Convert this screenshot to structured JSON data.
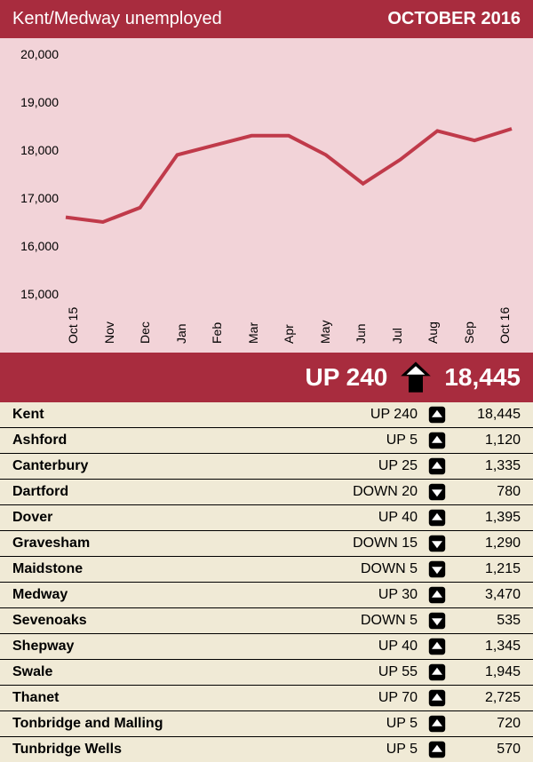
{
  "header": {
    "title": "Kent/Medway unemployed",
    "date": "OCTOBER 2016"
  },
  "chart": {
    "type": "line",
    "background_color": "#f2d3d8",
    "line_color": "#c03a4a",
    "line_width": 4,
    "ylim": [
      15000,
      20000
    ],
    "ytick_step": 1000,
    "ylabels": [
      "15,000",
      "16,000",
      "17,000",
      "18,000",
      "19,000",
      "20,000"
    ],
    "xlabels": [
      "Oct 15",
      "Nov",
      "Dec",
      "Jan",
      "Feb",
      "Mar",
      "Apr",
      "May",
      "Jun",
      "Jul",
      "Aug",
      "Sep",
      "Oct 16"
    ],
    "values": [
      16600,
      16500,
      16800,
      17900,
      18100,
      18300,
      18300,
      17900,
      17300,
      17800,
      18400,
      18200,
      18445
    ],
    "axis_fontsize": 14,
    "axis_color": "#000000"
  },
  "summary": {
    "change_label": "UP 240",
    "direction": "up",
    "total": "18,445",
    "bg_color": "#a82c3e",
    "arrow_fill": "#000000",
    "arrow_tri": "#ffffff"
  },
  "table": {
    "bg_color": "#f0ead6",
    "row_border": "#000000",
    "arrow_box_fill": "#000000",
    "arrow_tri_fill": "#ffffff",
    "rows": [
      {
        "name": "Kent",
        "change": "UP 240",
        "dir": "up",
        "value": "18,445"
      },
      {
        "name": "Ashford",
        "change": "UP 5",
        "dir": "up",
        "value": "1,120"
      },
      {
        "name": "Canterbury",
        "change": "UP 25",
        "dir": "up",
        "value": "1,335"
      },
      {
        "name": "Dartford",
        "change": "DOWN 20",
        "dir": "down",
        "value": "780"
      },
      {
        "name": "Dover",
        "change": "UP 40",
        "dir": "up",
        "value": "1,395"
      },
      {
        "name": "Gravesham",
        "change": "DOWN 15",
        "dir": "down",
        "value": "1,290"
      },
      {
        "name": "Maidstone",
        "change": "DOWN 5",
        "dir": "down",
        "value": "1,215"
      },
      {
        "name": "Medway",
        "change": "UP 30",
        "dir": "up",
        "value": "3,470"
      },
      {
        "name": "Sevenoaks",
        "change": "DOWN 5",
        "dir": "down",
        "value": "535"
      },
      {
        "name": "Shepway",
        "change": "UP 40",
        "dir": "up",
        "value": "1,345"
      },
      {
        "name": "Swale",
        "change": "UP 55",
        "dir": "up",
        "value": "1,945"
      },
      {
        "name": "Thanet",
        "change": "UP 70",
        "dir": "up",
        "value": "2,725"
      },
      {
        "name": "Tonbridge and Malling",
        "change": "UP 5",
        "dir": "up",
        "value": "720"
      },
      {
        "name": "Tunbridge Wells",
        "change": "UP 5",
        "dir": "up",
        "value": "570"
      }
    ]
  }
}
